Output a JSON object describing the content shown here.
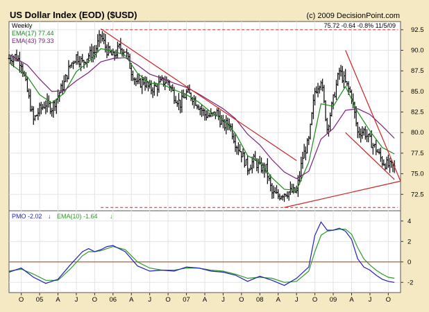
{
  "header": {
    "title": "US Dollar Index (EOD) ($USD)",
    "copyright": "(c) 2009 DecisionPoint.com"
  },
  "colors": {
    "background": "#f5e9c4",
    "panel": "#ffffff",
    "price": "#000000",
    "ema17": "#1a8a1a",
    "ema43": "#7a1f7a",
    "trendline": "#cc2222",
    "pmo": "#1f1fbf",
    "pmo_signal": "#2a9a2a",
    "zero_line": "#c45a2a"
  },
  "chart_data": [
    {
      "type": "ohlc",
      "period_label": "Weekly",
      "readout": "75.72  -0.64  -0.8%  11/5/09",
      "ylim": [
        70.5,
        93.5
      ],
      "y_ticks": [
        "72.5",
        "75.0",
        "77.5",
        "80.0",
        "82.5",
        "85.0",
        "87.5",
        "90.0",
        "92.5"
      ],
      "x_ticks": [
        "O",
        "05",
        "A",
        "J",
        "O",
        "06",
        "A",
        "J",
        "O",
        "07",
        "A",
        "J",
        "O",
        "08",
        "A",
        "J",
        "O",
        "09",
        "A",
        "J",
        "O"
      ],
      "x_tick_dates": [
        "2004-10",
        "2005-01",
        "2005-04",
        "2005-07",
        "2005-10",
        "2006-01",
        "2006-04",
        "2006-07",
        "2006-10",
        "2007-01",
        "2007-04",
        "2007-07",
        "2007-10",
        "2008-01",
        "2008-04",
        "2008-07",
        "2008-10",
        "2009-01",
        "2009-04",
        "2009-07",
        "2009-10"
      ],
      "x_range": [
        "2004-08",
        "2009-12"
      ],
      "close_path": [
        [
          "2004-08",
          89.0
        ],
        [
          "2004-09",
          89.3
        ],
        [
          "2004-10",
          88.5
        ],
        [
          "2004-11",
          85.0
        ],
        [
          "2004-12",
          81.5
        ],
        [
          "2005-01",
          82.8
        ],
        [
          "2005-02",
          83.5
        ],
        [
          "2005-03",
          83.0
        ],
        [
          "2005-04",
          84.5
        ],
        [
          "2005-05",
          86.0
        ],
        [
          "2005-06",
          88.2
        ],
        [
          "2005-07",
          89.3
        ],
        [
          "2005-08",
          88.5
        ],
        [
          "2005-09",
          89.4
        ],
        [
          "2005-10",
          89.8
        ],
        [
          "2005-11",
          91.8
        ],
        [
          "2005-12",
          90.0
        ],
        [
          "2006-01",
          89.2
        ],
        [
          "2006-02",
          90.3
        ],
        [
          "2006-03",
          90.0
        ],
        [
          "2006-04",
          87.5
        ],
        [
          "2006-05",
          85.8
        ],
        [
          "2006-06",
          86.3
        ],
        [
          "2006-07",
          85.3
        ],
        [
          "2006-08",
          85.5
        ],
        [
          "2006-09",
          86.2
        ],
        [
          "2006-10",
          86.2
        ],
        [
          "2006-11",
          84.5
        ],
        [
          "2006-12",
          83.5
        ],
        [
          "2007-01",
          84.8
        ],
        [
          "2007-02",
          84.3
        ],
        [
          "2007-03",
          83.3
        ],
        [
          "2007-04",
          82.2
        ],
        [
          "2007-05",
          82.0
        ],
        [
          "2007-06",
          82.4
        ],
        [
          "2007-07",
          80.8
        ],
        [
          "2007-08",
          81.2
        ],
        [
          "2007-09",
          78.8
        ],
        [
          "2007-10",
          77.5
        ],
        [
          "2007-11",
          75.7
        ],
        [
          "2007-12",
          76.6
        ],
        [
          "2008-01",
          75.8
        ],
        [
          "2008-02",
          75.6
        ],
        [
          "2008-03",
          72.6
        ],
        [
          "2008-04",
          72.3
        ],
        [
          "2008-05",
          72.7
        ],
        [
          "2008-06",
          72.8
        ],
        [
          "2008-07",
          72.8
        ],
        [
          "2008-08",
          77.0
        ],
        [
          "2008-09",
          79.0
        ],
        [
          "2008-10",
          85.0
        ],
        [
          "2008-11",
          86.5
        ],
        [
          "2008-12",
          80.5
        ],
        [
          "2009-01",
          84.0
        ],
        [
          "2009-02",
          87.5
        ],
        [
          "2009-03",
          86.0
        ],
        [
          "2009-04",
          84.5
        ],
        [
          "2009-05",
          80.0
        ],
        [
          "2009-06",
          80.2
        ],
        [
          "2009-07",
          79.0
        ],
        [
          "2009-08",
          78.0
        ],
        [
          "2009-09",
          76.5
        ],
        [
          "2009-10",
          76.0
        ],
        [
          "2009-11",
          75.7
        ]
      ],
      "series": [
        {
          "name": "EMA(17)",
          "legend": "EMA(17) 77.44",
          "values": [
            [
              "2004-08",
              88.5
            ],
            [
              "2004-11",
              86.8
            ],
            [
              "2005-01",
              84.6
            ],
            [
              "2005-03",
              83.6
            ],
            [
              "2005-05",
              84.8
            ],
            [
              "2005-07",
              87.4
            ],
            [
              "2005-09",
              88.6
            ],
            [
              "2005-11",
              90.2
            ],
            [
              "2006-01",
              89.9
            ],
            [
              "2006-03",
              89.4
            ],
            [
              "2006-05",
              87.2
            ],
            [
              "2006-07",
              86.0
            ],
            [
              "2006-09",
              85.9
            ],
            [
              "2006-11",
              85.2
            ],
            [
              "2007-01",
              84.6
            ],
            [
              "2007-03",
              83.7
            ],
            [
              "2007-05",
              82.5
            ],
            [
              "2007-07",
              81.6
            ],
            [
              "2007-09",
              79.9
            ],
            [
              "2007-11",
              77.2
            ],
            [
              "2008-01",
              76.4
            ],
            [
              "2008-03",
              74.5
            ],
            [
              "2008-05",
              73.1
            ],
            [
              "2008-07",
              73.0
            ],
            [
              "2008-09",
              76.4
            ],
            [
              "2008-11",
              83.5
            ],
            [
              "2009-01",
              83.2
            ],
            [
              "2009-03",
              85.6
            ],
            [
              "2009-05",
              82.5
            ],
            [
              "2009-07",
              80.2
            ],
            [
              "2009-09",
              78.2
            ],
            [
              "2009-11",
              77.4
            ]
          ]
        },
        {
          "name": "EMA(43)",
          "legend": "EMA(43) 79.33",
          "values": [
            [
              "2004-08",
              89.5
            ],
            [
              "2004-11",
              88.2
            ],
            [
              "2005-01",
              86.5
            ],
            [
              "2005-03",
              85.0
            ],
            [
              "2005-05",
              85.1
            ],
            [
              "2005-07",
              86.3
            ],
            [
              "2005-09",
              87.3
            ],
            [
              "2005-11",
              88.6
            ],
            [
              "2006-01",
              89.0
            ],
            [
              "2006-03",
              89.1
            ],
            [
              "2006-05",
              88.2
            ],
            [
              "2006-07",
              87.1
            ],
            [
              "2006-09",
              86.6
            ],
            [
              "2006-11",
              86.0
            ],
            [
              "2007-01",
              85.5
            ],
            [
              "2007-03",
              84.7
            ],
            [
              "2007-05",
              83.8
            ],
            [
              "2007-07",
              82.9
            ],
            [
              "2007-09",
              81.7
            ],
            [
              "2007-11",
              79.8
            ],
            [
              "2008-01",
              78.5
            ],
            [
              "2008-03",
              76.7
            ],
            [
              "2008-05",
              75.2
            ],
            [
              "2008-07",
              74.4
            ],
            [
              "2008-09",
              75.3
            ],
            [
              "2008-11",
              79.2
            ],
            [
              "2009-01",
              80.5
            ],
            [
              "2009-03",
              82.7
            ],
            [
              "2009-05",
              82.9
            ],
            [
              "2009-07",
              82.2
            ],
            [
              "2009-09",
              80.8
            ],
            [
              "2009-11",
              79.3
            ]
          ]
        }
      ],
      "trendlines": [
        {
          "from": [
            "2005-11",
            92.6
          ],
          "to": [
            "2008-07",
            76.6
          ]
        },
        {
          "from": [
            "2008-05",
            70.9
          ],
          "to": [
            "2009-12",
            74.1
          ]
        },
        {
          "from": [
            "2009-03",
            90.0
          ],
          "to": [
            "2009-12",
            74.1
          ]
        },
        {
          "from": [
            "2009-03",
            80.0
          ],
          "to": [
            "2009-11",
            74.3
          ]
        }
      ],
      "reference_lines": [
        92.5,
        70.9
      ]
    },
    {
      "type": "line",
      "legend_pmo": "PMO  -2.02",
      "legend_signal": "EMA(10)  -1.64",
      "ylim": [
        -3,
        5
      ],
      "y_ticks": [
        "-2",
        "0",
        "2",
        "4"
      ],
      "zero_line": 0,
      "series": [
        {
          "name": "PMO",
          "values": [
            [
              "2004-08",
              -1.0
            ],
            [
              "2004-10",
              -0.6
            ],
            [
              "2004-12",
              -1.5
            ],
            [
              "2005-02",
              -2.1
            ],
            [
              "2005-04",
              -1.7
            ],
            [
              "2005-06",
              -0.3
            ],
            [
              "2005-08",
              1.0
            ],
            [
              "2005-09",
              1.3
            ],
            [
              "2005-10",
              1.0
            ],
            [
              "2005-11",
              1.2
            ],
            [
              "2005-12",
              1.5
            ],
            [
              "2006-01",
              1.6
            ],
            [
              "2006-03",
              1.0
            ],
            [
              "2006-05",
              -0.4
            ],
            [
              "2006-07",
              -0.9
            ],
            [
              "2006-09",
              -0.8
            ],
            [
              "2006-11",
              -0.9
            ],
            [
              "2007-01",
              -0.5
            ],
            [
              "2007-03",
              -0.6
            ],
            [
              "2007-05",
              -0.9
            ],
            [
              "2007-07",
              -1.0
            ],
            [
              "2007-09",
              -1.3
            ],
            [
              "2007-11",
              -1.9
            ],
            [
              "2008-01",
              -1.4
            ],
            [
              "2008-03",
              -1.8
            ],
            [
              "2008-05",
              -2.3
            ],
            [
              "2008-07",
              -1.6
            ],
            [
              "2008-09",
              -0.5
            ],
            [
              "2008-10",
              2.6
            ],
            [
              "2008-11",
              3.9
            ],
            [
              "2008-12",
              3.1
            ],
            [
              "2009-01",
              3.1
            ],
            [
              "2009-02",
              3.3
            ],
            [
              "2009-03",
              3.0
            ],
            [
              "2009-04",
              2.2
            ],
            [
              "2009-05",
              0.3
            ],
            [
              "2009-06",
              -0.5
            ],
            [
              "2009-07",
              -0.8
            ],
            [
              "2009-08",
              -1.3
            ],
            [
              "2009-09",
              -1.7
            ],
            [
              "2009-10",
              -1.9
            ],
            [
              "2009-11",
              -2.0
            ]
          ]
        },
        {
          "name": "EMA(10)",
          "values": [
            [
              "2004-08",
              -0.9
            ],
            [
              "2004-10",
              -0.7
            ],
            [
              "2004-12",
              -1.2
            ],
            [
              "2005-02",
              -1.8
            ],
            [
              "2005-04",
              -1.8
            ],
            [
              "2005-06",
              -0.7
            ],
            [
              "2005-08",
              0.6
            ],
            [
              "2005-09",
              1.0
            ],
            [
              "2005-10",
              1.0
            ],
            [
              "2005-11",
              1.1
            ],
            [
              "2005-12",
              1.3
            ],
            [
              "2006-01",
              1.5
            ],
            [
              "2006-03",
              1.2
            ],
            [
              "2006-05",
              0.0
            ],
            [
              "2006-07",
              -0.6
            ],
            [
              "2006-09",
              -0.8
            ],
            [
              "2006-11",
              -0.8
            ],
            [
              "2007-01",
              -0.6
            ],
            [
              "2007-03",
              -0.6
            ],
            [
              "2007-05",
              -0.8
            ],
            [
              "2007-07",
              -0.9
            ],
            [
              "2007-09",
              -1.2
            ],
            [
              "2007-11",
              -1.6
            ],
            [
              "2008-01",
              -1.5
            ],
            [
              "2008-03",
              -1.6
            ],
            [
              "2008-05",
              -2.0
            ],
            [
              "2008-07",
              -1.9
            ],
            [
              "2008-09",
              -0.9
            ],
            [
              "2008-10",
              1.0
            ],
            [
              "2008-11",
              2.6
            ],
            [
              "2008-12",
              3.0
            ],
            [
              "2009-01",
              3.1
            ],
            [
              "2009-02",
              3.2
            ],
            [
              "2009-03",
              3.2
            ],
            [
              "2009-04",
              2.7
            ],
            [
              "2009-05",
              1.4
            ],
            [
              "2009-06",
              0.3
            ],
            [
              "2009-07",
              -0.3
            ],
            [
              "2009-08",
              -0.8
            ],
            [
              "2009-09",
              -1.2
            ],
            [
              "2009-10",
              -1.5
            ],
            [
              "2009-11",
              -1.6
            ]
          ]
        }
      ]
    }
  ]
}
